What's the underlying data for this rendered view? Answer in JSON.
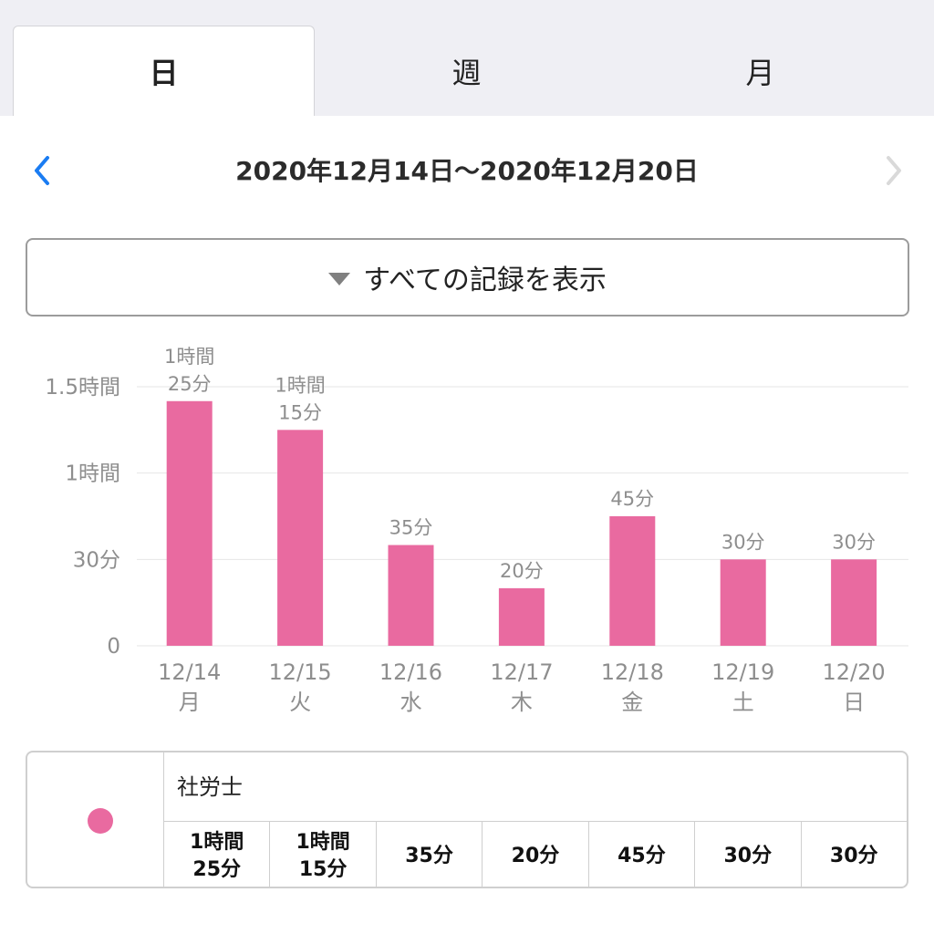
{
  "tabs": [
    {
      "label": "日",
      "active": true
    },
    {
      "label": "週",
      "active": false
    },
    {
      "label": "月",
      "active": false
    }
  ],
  "date_range": "2020年12月14日〜2020年12月20日",
  "nav": {
    "prev_icon": "chevron-left-icon",
    "next_icon": "chevron-right-icon",
    "prev_color": "#1a7cf2",
    "next_color": "#d9d9d9"
  },
  "filter": {
    "label": "すべての記録を表示",
    "icon": "triangle-down-icon"
  },
  "colors": {
    "bar": "#e96aa0",
    "grid": "#e6e6e6",
    "text": "#8e8e8e"
  },
  "chart_data": {
    "type": "bar",
    "categories": [
      "12/14",
      "12/15",
      "12/16",
      "12/17",
      "12/18",
      "12/19",
      "12/20"
    ],
    "weekdays": [
      "月",
      "火",
      "水",
      "木",
      "金",
      "土",
      "日"
    ],
    "values": [
      85,
      75,
      35,
      20,
      45,
      30,
      30
    ],
    "value_unit": "minutes",
    "value_labels": [
      [
        "1時間",
        "25分"
      ],
      [
        "1時間",
        "15分"
      ],
      [
        "35分"
      ],
      [
        "20分"
      ],
      [
        "45分"
      ],
      [
        "30分"
      ],
      [
        "30分"
      ]
    ],
    "yticks": [
      {
        "value": 0,
        "label": "0"
      },
      {
        "value": 30,
        "label": "30分"
      },
      {
        "value": 60,
        "label": "1時間"
      },
      {
        "value": 90,
        "label": "1.5時間"
      }
    ],
    "ylim": [
      0,
      90
    ],
    "grid": true,
    "series": [
      {
        "name": "社労士",
        "color": "#e96aa0"
      }
    ]
  },
  "legend": {
    "name": "社労士",
    "values": [
      "1時間\n25分",
      "1時間\n15分",
      "35分",
      "20分",
      "45分",
      "30分",
      "30分"
    ]
  }
}
